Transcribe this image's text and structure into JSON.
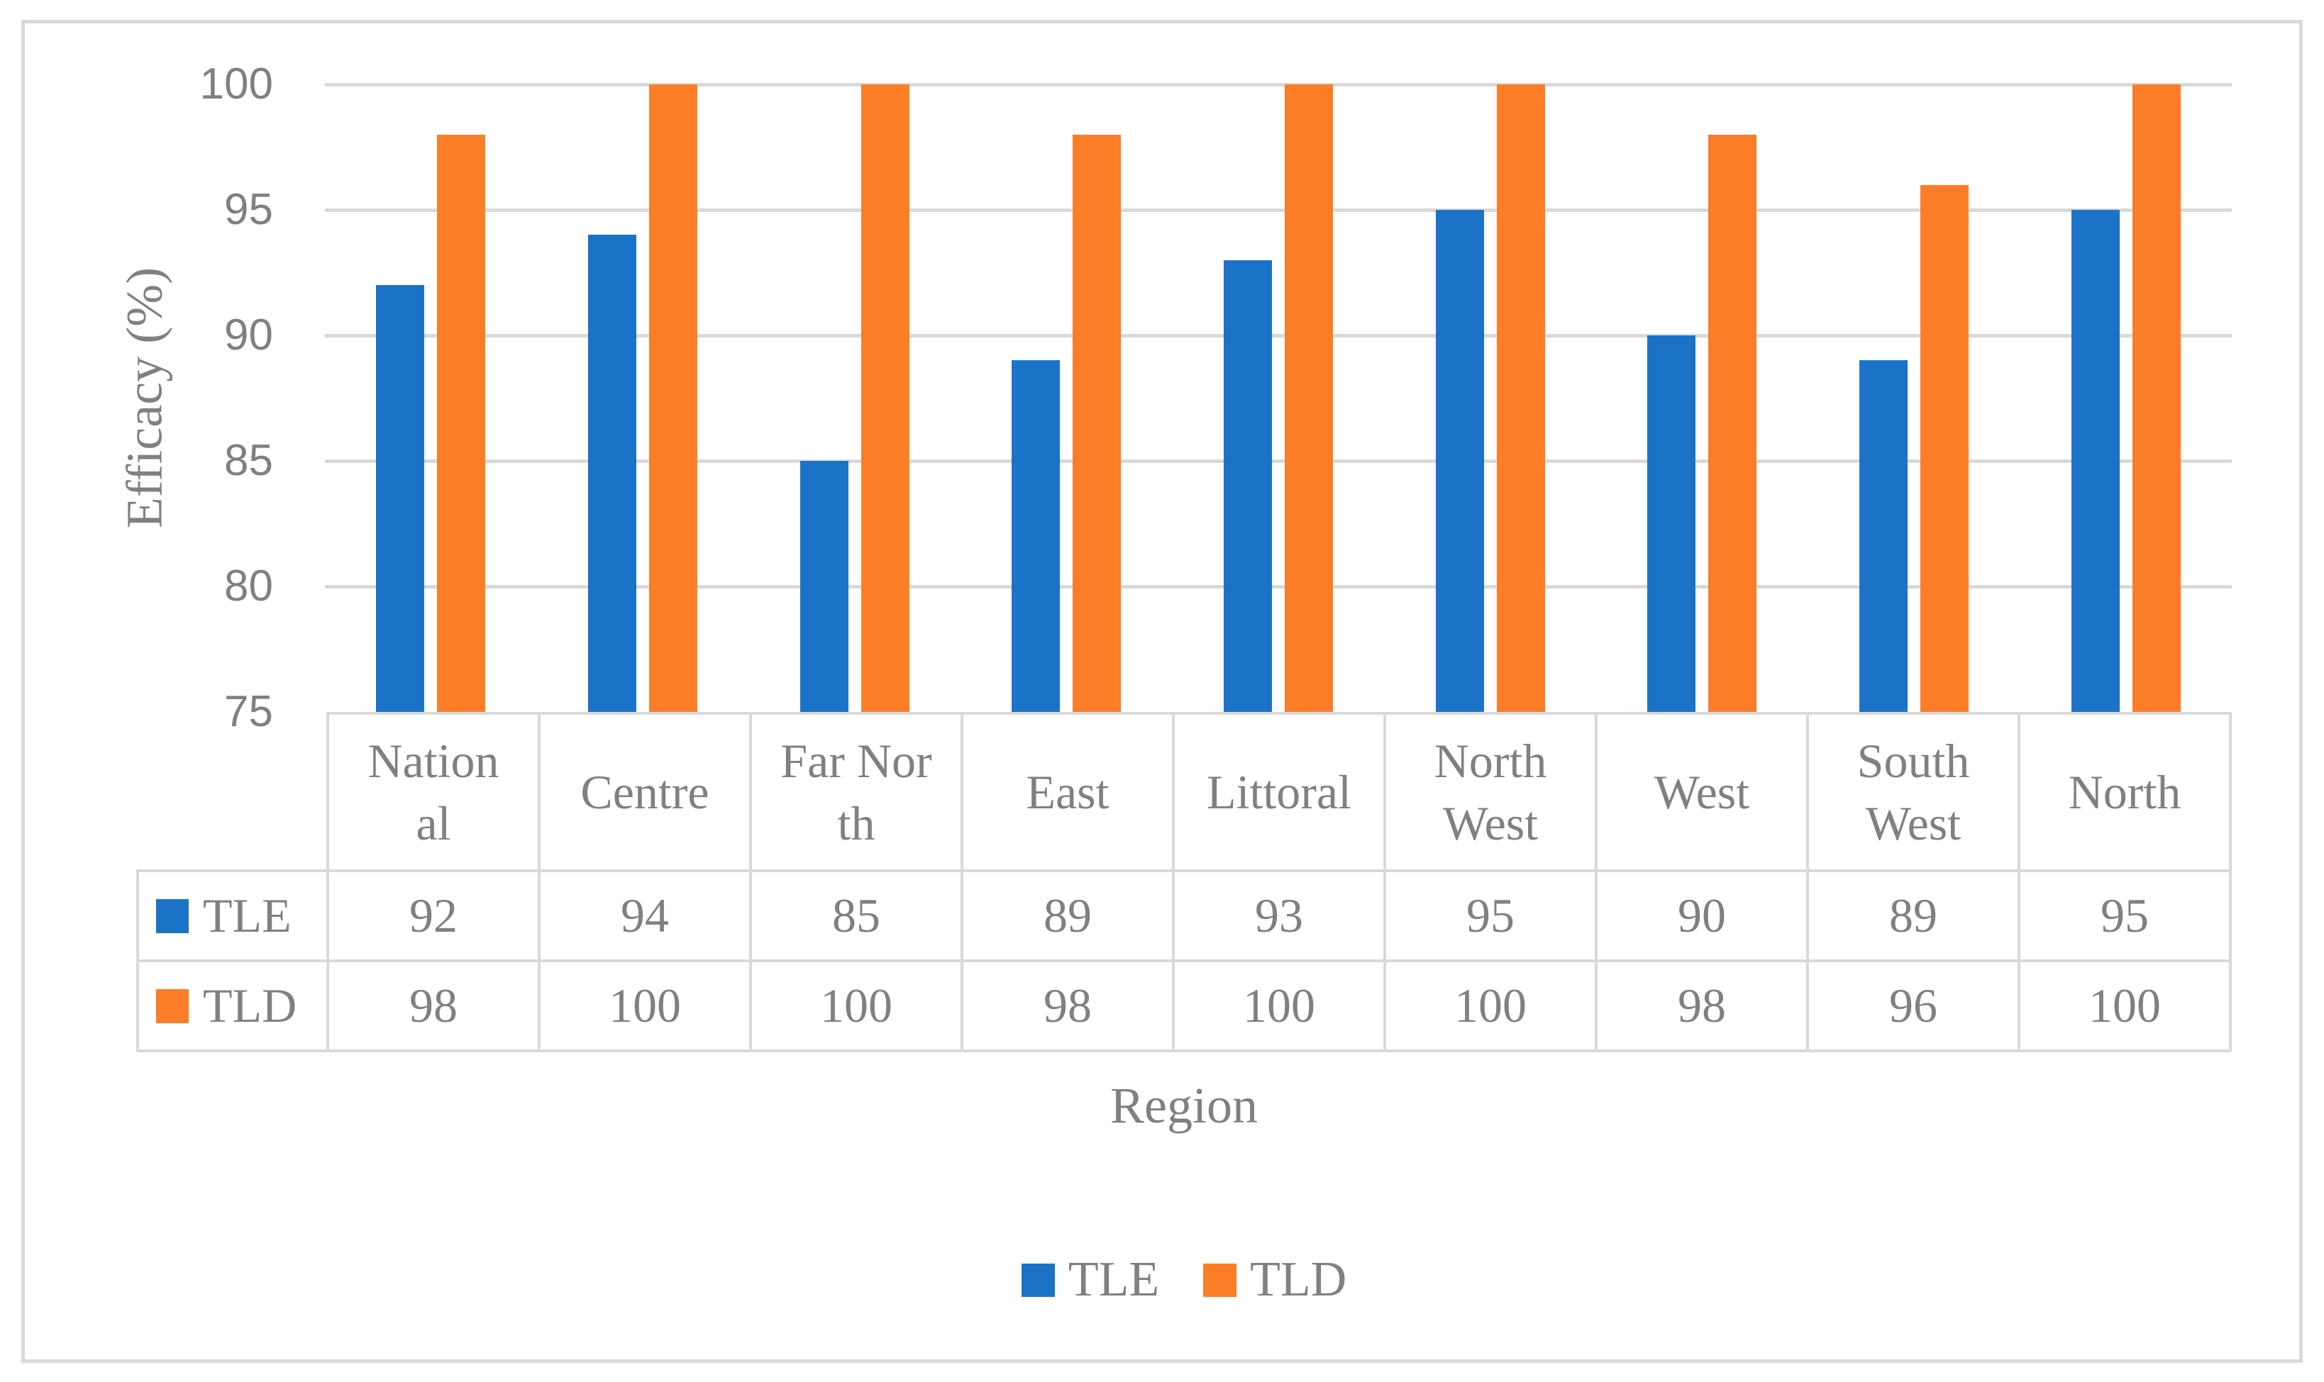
{
  "figure": {
    "background": "#FFFFFF",
    "border_color": "#D9D9D9"
  },
  "colors": {
    "text_gray": "#808080",
    "grid_gray": "#D9D9D9",
    "tle_blue": "#1B73C8",
    "tld_orange": "#FC7D28"
  },
  "chart_data": {
    "type": "bar",
    "title": "",
    "categories": [
      "National",
      "Centre",
      "Far North",
      "East",
      "Littoral",
      "North West",
      "West",
      "South West",
      "North"
    ],
    "series": [
      {
        "name": "TLE",
        "color": "#1B73C8",
        "values": [
          92,
          94,
          85,
          89,
          93,
          95,
          90,
          89,
          95
        ]
      },
      {
        "name": "TLD",
        "color": "#FC7D28",
        "values": [
          98,
          100,
          100,
          98,
          100,
          100,
          98,
          96,
          100
        ]
      }
    ],
    "xlabel": "Region",
    "ylabel": "Efficacy (%)",
    "ylim": [
      75,
      100
    ],
    "yticks": [
      75,
      80,
      85,
      90,
      95,
      100
    ],
    "grid": true,
    "gridline_color": "#D9D9D9",
    "tick_label_color": "#808080",
    "legend_position": "bottom",
    "show_data_table": true
  }
}
